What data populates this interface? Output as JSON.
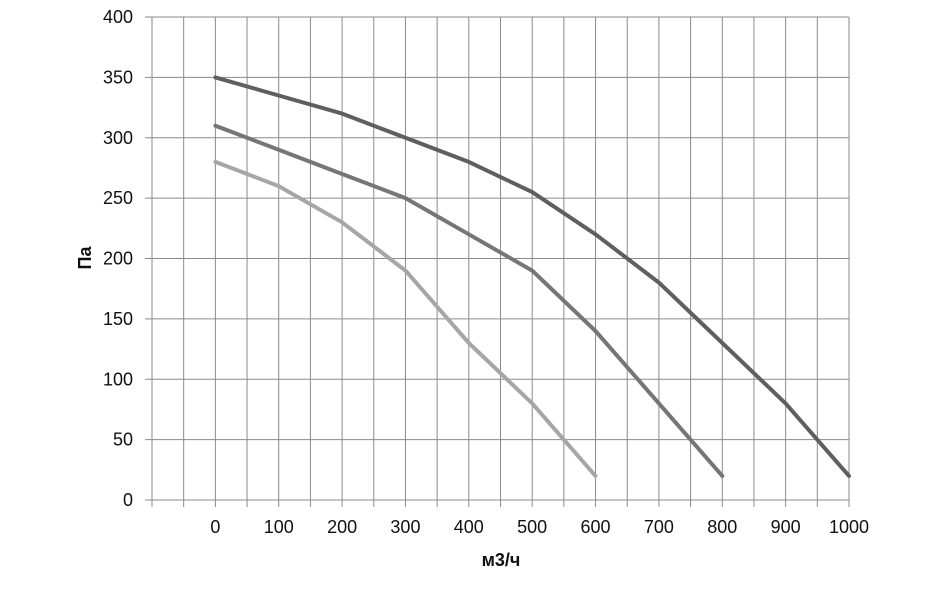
{
  "chart_data": {
    "type": "line",
    "title": "",
    "xlabel": "м3/ч",
    "ylabel": "Па",
    "xlim": [
      -100,
      1000
    ],
    "ylim": [
      0,
      400
    ],
    "x_ticks": [
      0,
      100,
      200,
      300,
      400,
      500,
      600,
      700,
      800,
      900,
      1000
    ],
    "y_ticks": [
      0,
      50,
      100,
      150,
      200,
      250,
      300,
      350,
      400
    ],
    "grid": true,
    "legend": "none",
    "series": [
      {
        "color": "#5f5f5f",
        "x": [
          0,
          100,
          200,
          300,
          400,
          500,
          600,
          700,
          800,
          900,
          1000
        ],
        "y": [
          350,
          335,
          320,
          300,
          280,
          255,
          220,
          180,
          130,
          80,
          20
        ]
      },
      {
        "color": "#767676",
        "x": [
          0,
          100,
          200,
          300,
          400,
          500,
          600,
          700,
          800
        ],
        "y": [
          310,
          290,
          270,
          250,
          220,
          190,
          140,
          80,
          20
        ]
      },
      {
        "color": "#a6a6a6",
        "x": [
          0,
          100,
          200,
          300,
          400,
          500,
          600
        ],
        "y": [
          280,
          260,
          230,
          190,
          130,
          80,
          20
        ]
      }
    ]
  }
}
